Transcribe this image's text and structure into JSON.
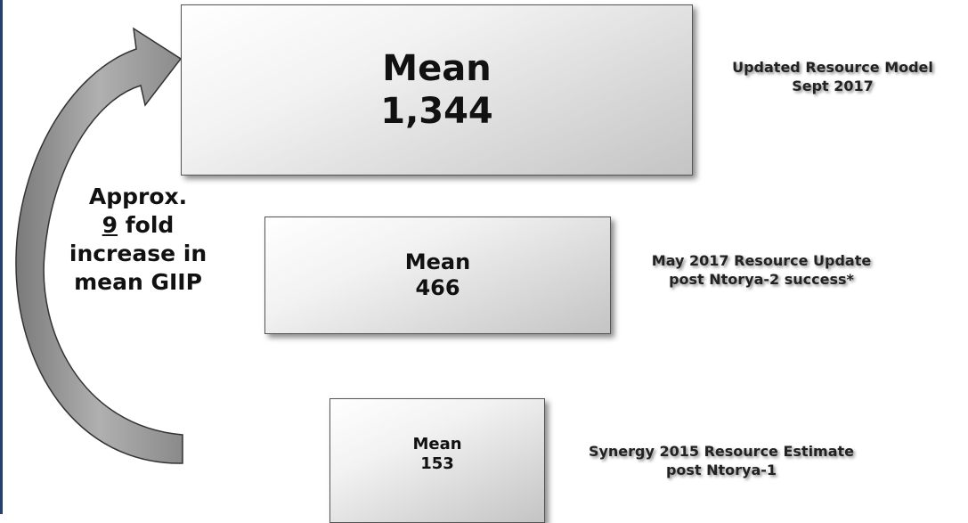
{
  "boxes": [
    {
      "label": "Mean",
      "value": "1,344",
      "description": [
        "Updated Resource Model",
        "Sept 2017"
      ]
    },
    {
      "label": "Mean",
      "value": "466",
      "description": [
        "May 2017 Resource Update",
        "post Ntorya-2 success*"
      ]
    },
    {
      "label": "Mean",
      "value": "153",
      "description": [
        "Synergy 2015 Resource Estimate",
        "post Ntorya-1"
      ]
    }
  ],
  "annotation": {
    "first": "Approx.",
    "factor": "9",
    "factor_rest": "fold",
    "third": "increase in",
    "fourth": "mean GIIP"
  }
}
